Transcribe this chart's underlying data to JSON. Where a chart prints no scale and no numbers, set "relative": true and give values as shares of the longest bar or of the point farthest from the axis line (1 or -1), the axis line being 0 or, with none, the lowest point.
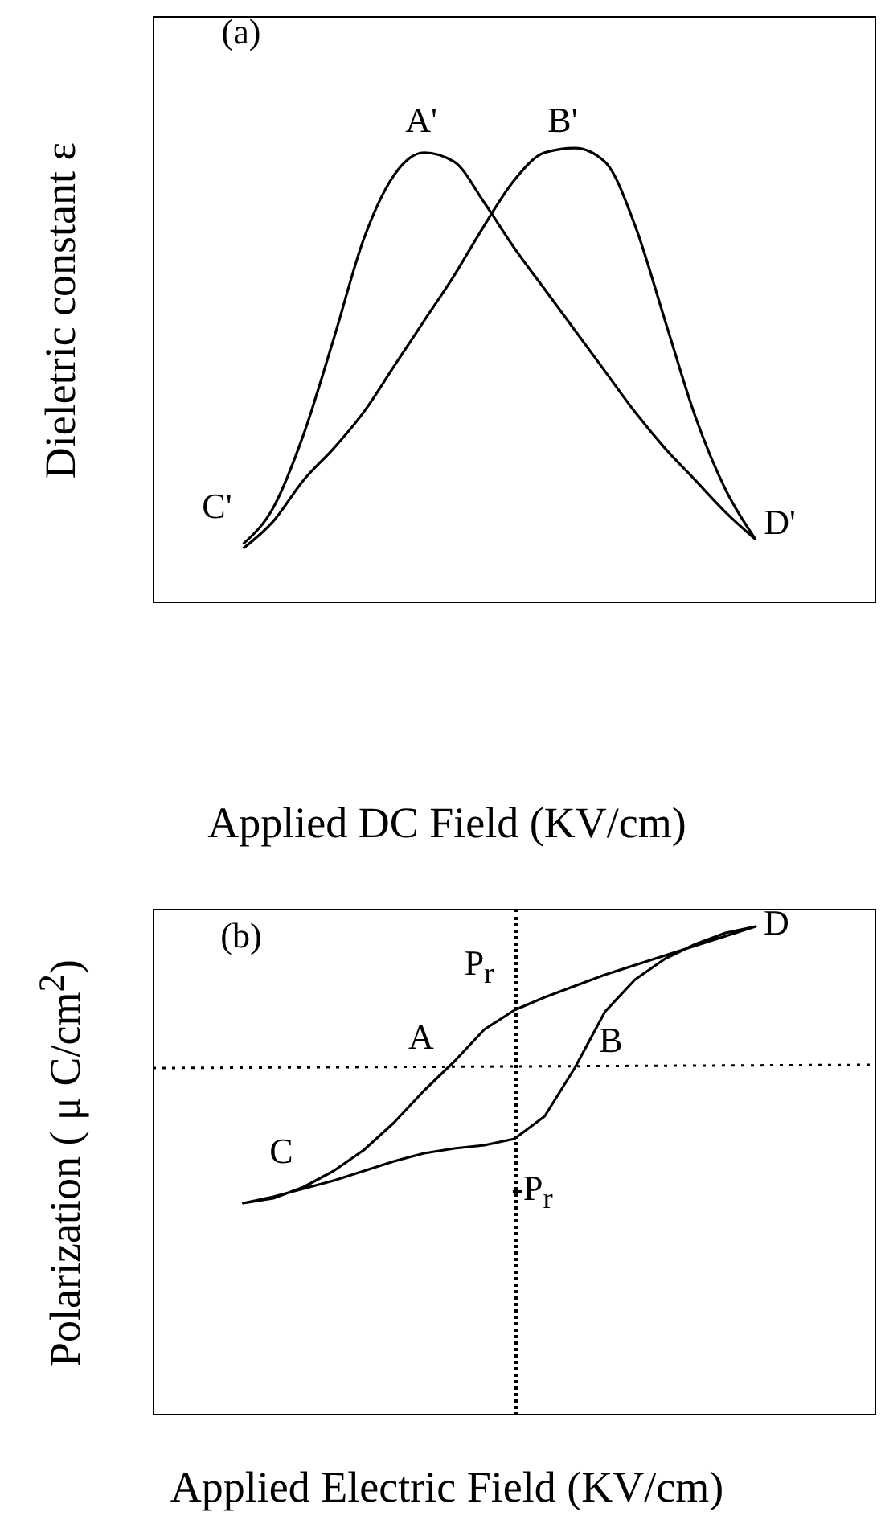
{
  "chart_data": [
    {
      "type": "line",
      "relative": true,
      "xlabel": "Applied DC Field (KV/cm)",
      "ylabel": "Dieletric constant  ε",
      "annotations": [
        "(a)",
        "A'",
        "B'",
        "C'",
        "D'"
      ],
      "categories": [
        null,
        null,
        null,
        null,
        null,
        null,
        null,
        null,
        null,
        null,
        null,
        null,
        null,
        null,
        null,
        null,
        null,
        null,
        null,
        null,
        null,
        null,
        null,
        null,
        null
      ],
      "series": [
        {
          "color": "#000000",
          "values": [
            null,
            null,
            null,
            0.13,
            0.21,
            0.37,
            0.58,
            0.8,
            0.94,
            0.99,
            0.97,
            0.88,
            0.78,
            0.69,
            0.6,
            0.51,
            0.42,
            0.34,
            0.27,
            0.2,
            0.14,
            null,
            null,
            null,
            null
          ]
        },
        {
          "color": "#000000",
          "values": [
            null,
            null,
            null,
            0.12,
            0.18,
            0.27,
            0.34,
            0.42,
            0.52,
            0.62,
            0.72,
            0.83,
            0.93,
            0.99,
            1,
            0.97,
            0.83,
            0.62,
            0.41,
            0.25,
            0.14,
            null,
            null,
            null,
            null
          ]
        }
      ]
    },
    {
      "type": "other",
      "xlabel": "Applied Electric Field (KV/cm)",
      "ylabel": "Polarization ( μ C/cm$^{2}$)",
      "annotations": [
        "(b)",
        "D",
        "P$_{r}$",
        "A",
        "B",
        "-P$_{r}$",
        "C"
      ]
    }
  ]
}
